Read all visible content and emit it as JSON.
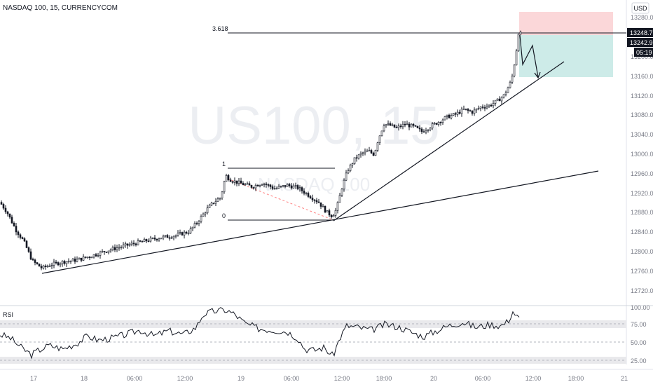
{
  "header": {
    "title": "NASDAQ 100, 15, CURRENCYCOM",
    "currency": "USD"
  },
  "watermark": {
    "main": "US100, 15",
    "sub": "NASDAQ 100"
  },
  "colors": {
    "bg": "#ffffff",
    "candle": "#131722",
    "grid": "#e0e3eb",
    "axis_text": "#787b86",
    "trendline": "#131722",
    "fib_dash": "#ff8080",
    "stop_zone": "#fbd7d9",
    "target_zone": "#cdebe8",
    "rsi_band": "#e9e9ec",
    "price_tag_bg": "#131722",
    "price_tag_text": "#ffffff"
  },
  "price_scale": {
    "ticks": [
      "13280.0",
      "13200.0",
      "13160.0",
      "13120.0",
      "13080.0",
      "13040.0",
      "13000.0",
      "12960.0",
      "12920.0",
      "12880.0",
      "12840.0",
      "12800.0",
      "12760.0",
      "12720.0"
    ],
    "tags": [
      {
        "label": "13248.7",
        "price": 13248.7
      },
      {
        "label": "13242.9",
        "price": 13242.9
      },
      {
        "label": "05:19",
        "price": 13219.0
      }
    ]
  },
  "time_scale": {
    "ticks": [
      "17",
      "18",
      "06:00",
      "12:00",
      "19",
      "06:00",
      "12:00",
      "18:00",
      "20",
      "06:00",
      "12:00",
      "18:00",
      "21"
    ]
  },
  "rsi": {
    "label": "RSI",
    "ticks": [
      "100.00",
      "75.00",
      "50.00",
      "25.00"
    ],
    "levels": [
      70,
      50,
      30
    ]
  },
  "fib": {
    "labels": [
      "3.618",
      "1",
      "0"
    ],
    "levels": [
      13248.7,
      12968.0,
      12866.0
    ]
  },
  "chart_data": {
    "type": "candlestick",
    "title": "NASDAQ 100, 15, CURRENCYCOM",
    "ylim": [
      12690,
      13300
    ],
    "close_path": [
      [
        0,
        12900
      ],
      [
        10,
        12880
      ],
      [
        22,
        12845
      ],
      [
        34,
        12820
      ],
      [
        46,
        12780
      ],
      [
        60,
        12765
      ],
      [
        72,
        12772
      ],
      [
        90,
        12778
      ],
      [
        110,
        12782
      ],
      [
        130,
        12790
      ],
      [
        150,
        12800
      ],
      [
        170,
        12808
      ],
      [
        190,
        12815
      ],
      [
        210,
        12822
      ],
      [
        230,
        12828
      ],
      [
        250,
        12832
      ],
      [
        270,
        12840
      ],
      [
        282,
        12860
      ],
      [
        295,
        12885
      ],
      [
        305,
        12900
      ],
      [
        315,
        12910
      ],
      [
        322,
        12955
      ],
      [
        330,
        12945
      ],
      [
        345,
        12938
      ],
      [
        360,
        12932
      ],
      [
        375,
        12940
      ],
      [
        392,
        12928
      ],
      [
        410,
        12935
      ],
      [
        425,
        12930
      ],
      [
        440,
        12915
      ],
      [
        455,
        12900
      ],
      [
        466,
        12880
      ],
      [
        474,
        12872
      ],
      [
        480,
        12885
      ],
      [
        488,
        12930
      ],
      [
        496,
        12965
      ],
      [
        506,
        12988
      ],
      [
        516,
        13000
      ],
      [
        526,
        13005
      ],
      [
        534,
        12998
      ],
      [
        540,
        13030
      ],
      [
        548,
        13060
      ],
      [
        556,
        13058
      ],
      [
        566,
        13052
      ],
      [
        578,
        13060
      ],
      [
        590,
        13055
      ],
      [
        602,
        13045
      ],
      [
        614,
        13055
      ],
      [
        626,
        13065
      ],
      [
        638,
        13075
      ],
      [
        650,
        13080
      ],
      [
        662,
        13090
      ],
      [
        674,
        13085
      ],
      [
        686,
        13095
      ],
      [
        698,
        13098
      ],
      [
        710,
        13108
      ],
      [
        720,
        13120
      ],
      [
        730,
        13150
      ],
      [
        736,
        13200
      ],
      [
        740,
        13248
      ],
      [
        745,
        13243
      ]
    ],
    "rsi_path": [
      [
        0,
        60
      ],
      [
        15,
        55
      ],
      [
        30,
        42
      ],
      [
        45,
        32
      ],
      [
        55,
        38
      ],
      [
        70,
        45
      ],
      [
        90,
        40
      ],
      [
        110,
        48
      ],
      [
        125,
        58
      ],
      [
        140,
        52
      ],
      [
        160,
        55
      ],
      [
        180,
        60
      ],
      [
        200,
        66
      ],
      [
        220,
        58
      ],
      [
        240,
        65
      ],
      [
        262,
        60
      ],
      [
        280,
        70
      ],
      [
        290,
        88
      ],
      [
        305,
        92
      ],
      [
        322,
        94
      ],
      [
        335,
        88
      ],
      [
        350,
        75
      ],
      [
        370,
        68
      ],
      [
        390,
        66
      ],
      [
        410,
        64
      ],
      [
        425,
        55
      ],
      [
        435,
        40
      ],
      [
        448,
        38
      ],
      [
        462,
        42
      ],
      [
        475,
        30
      ],
      [
        485,
        55
      ],
      [
        495,
        72
      ],
      [
        510,
        70
      ],
      [
        530,
        66
      ],
      [
        550,
        74
      ],
      [
        570,
        70
      ],
      [
        590,
        62
      ],
      [
        605,
        57
      ],
      [
        620,
        64
      ],
      [
        640,
        72
      ],
      [
        660,
        77
      ],
      [
        680,
        70
      ],
      [
        700,
        74
      ],
      [
        715,
        72
      ],
      [
        725,
        78
      ],
      [
        732,
        92
      ],
      [
        740,
        82
      ]
    ]
  }
}
